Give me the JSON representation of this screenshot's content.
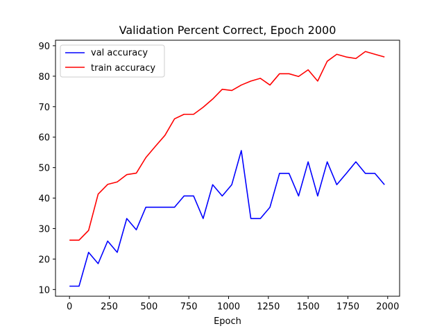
{
  "chart_data": {
    "type": "line",
    "title": "Validation Percent Correct, Epoch 2000",
    "xlabel": "Epoch",
    "ylabel": "",
    "xlim": [
      -88,
      2075
    ],
    "ylim": [
      7.8,
      91.8
    ],
    "xticks": [
      0,
      250,
      500,
      750,
      1000,
      1250,
      1500,
      1750,
      2000
    ],
    "yticks": [
      10,
      20,
      30,
      40,
      50,
      60,
      70,
      80,
      90
    ],
    "grid": false,
    "legend_position": "top-left",
    "series": [
      {
        "name": "val accuracy",
        "color": "#0000ff",
        "x": [
          0,
          60,
          120,
          180,
          240,
          300,
          360,
          420,
          480,
          540,
          600,
          660,
          720,
          780,
          840,
          900,
          960,
          1020,
          1080,
          1140,
          1200,
          1260,
          1320,
          1380,
          1440,
          1500,
          1560,
          1620,
          1680,
          1740,
          1800,
          1860,
          1920,
          1980
        ],
        "y": [
          11.1,
          11.1,
          22.2,
          18.5,
          25.9,
          22.2,
          33.3,
          29.6,
          37.0,
          37.0,
          37.0,
          37.0,
          40.7,
          40.7,
          33.3,
          44.4,
          40.7,
          44.4,
          55.6,
          33.3,
          33.3,
          37.0,
          48.1,
          48.1,
          40.7,
          51.9,
          40.7,
          51.9,
          44.4,
          48.1,
          51.9,
          48.1,
          48.1,
          44.4
        ]
      },
      {
        "name": "train accuracy",
        "color": "#ff0000",
        "x": [
          0,
          60,
          120,
          180,
          240,
          300,
          360,
          420,
          480,
          540,
          600,
          660,
          720,
          780,
          840,
          900,
          960,
          1020,
          1080,
          1140,
          1200,
          1260,
          1320,
          1380,
          1440,
          1500,
          1560,
          1620,
          1680,
          1740,
          1800,
          1860,
          1920,
          1980
        ],
        "y": [
          26.2,
          26.2,
          29.4,
          41.3,
          44.5,
          45.3,
          47.7,
          48.2,
          53.3,
          57.0,
          60.6,
          66.0,
          67.5,
          67.5,
          69.8,
          72.5,
          75.7,
          75.3,
          77.1,
          78.4,
          79.3,
          77.1,
          80.8,
          80.8,
          79.9,
          82.1,
          78.4,
          84.9,
          87.2,
          86.3,
          85.8,
          88.1,
          87.2,
          86.3
        ]
      }
    ]
  }
}
